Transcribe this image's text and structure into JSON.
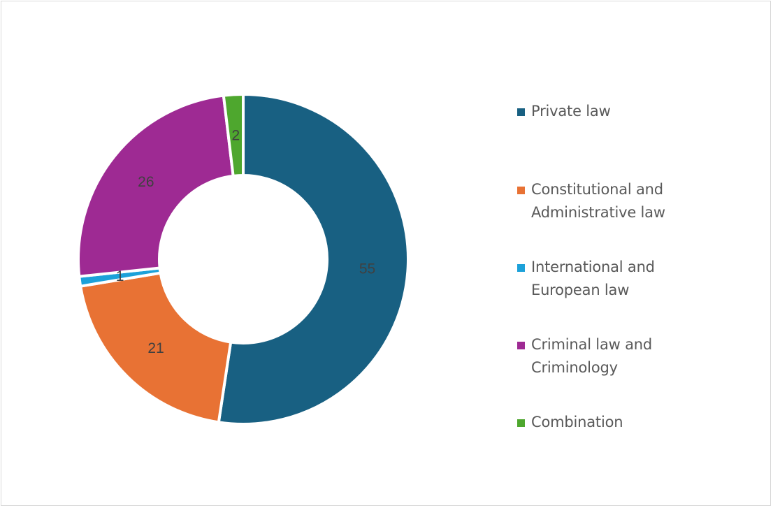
{
  "chart_data": {
    "type": "pie",
    "subtype": "donut",
    "title": "",
    "categories": [
      "Private law",
      "Constitutional and Administrative law",
      "International and European law",
      "Criminal law and Criminology",
      "Combination"
    ],
    "values": [
      55,
      21,
      1,
      26,
      2
    ],
    "colors": [
      "#186082",
      "#E87234",
      "#1CA1D9",
      "#9E2A93",
      "#4EA72E"
    ],
    "data_labels": [
      "55",
      "21",
      "1",
      "26",
      "2"
    ],
    "start_angle_deg": 0,
    "direction": "clockwise",
    "legend_position": "right"
  },
  "legend": {
    "items": [
      {
        "label_line1": "Private law",
        "label_line2": "",
        "color": "#186082"
      },
      {
        "label_line1": "Constitutional and",
        "label_line2": "Administrative law",
        "color": "#E87234"
      },
      {
        "label_line1": "International and",
        "label_line2": "European law",
        "color": "#1CA1D9"
      },
      {
        "label_line1": "Criminal law and",
        "label_line2": "Criminology",
        "color": "#9E2A93"
      },
      {
        "label_line1": "Combination",
        "label_line2": "",
        "color": "#4EA72E"
      }
    ]
  }
}
